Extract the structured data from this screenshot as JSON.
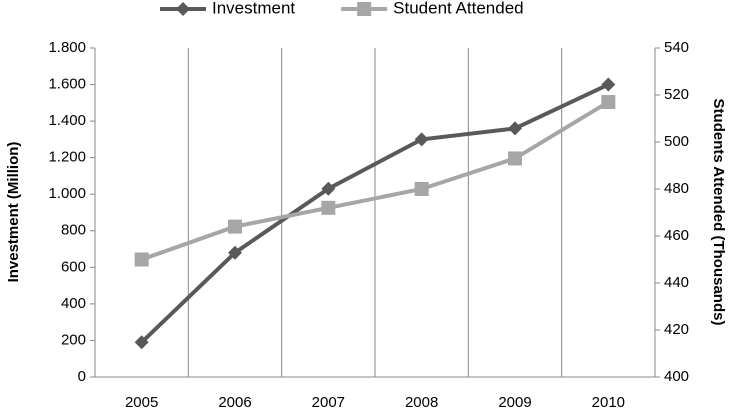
{
  "chart_data": {
    "type": "line",
    "categories": [
      "2005",
      "2006",
      "2007",
      "2008",
      "2009",
      "2010"
    ],
    "series": [
      {
        "name": "Investment",
        "color": "#595959",
        "marker": "diamond",
        "values": [
          190,
          680,
          1030,
          1300,
          1360,
          1600
        ]
      },
      {
        "name": "Student Attended",
        "color": "#a6a6a6",
        "marker": "square",
        "axis": "y2",
        "values": [
          450,
          464,
          472,
          480,
          493,
          517
        ]
      }
    ],
    "y_label": "Investment (Million)",
    "y2_label": "Students Attended (Thousands)",
    "ylim": [
      0,
      1800
    ],
    "yticks": [
      0,
      200,
      400,
      600,
      800,
      {
        "value": 1000,
        "label": "1.000"
      },
      {
        "value": 1200,
        "label": "1.200"
      },
      {
        "value": 1400,
        "label": "1.400"
      },
      {
        "value": 1600,
        "label": "1.600"
      },
      {
        "value": 1800,
        "label": "1.800"
      }
    ],
    "y2lim": [
      400,
      540
    ],
    "y2ticks": [
      400,
      420,
      440,
      460,
      480,
      500,
      520,
      540
    ],
    "grid": "x",
    "legend": "top"
  }
}
